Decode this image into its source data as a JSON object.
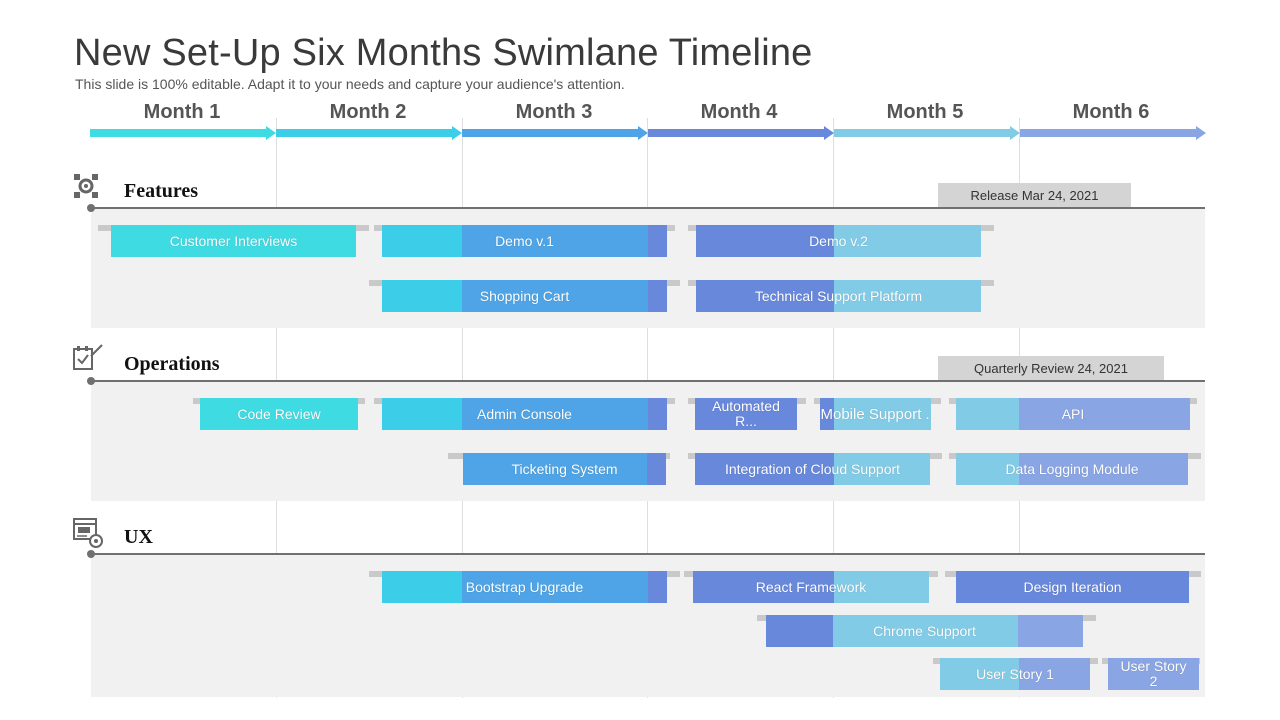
{
  "title": "New Set-Up Six Months Swimlane Timeline",
  "subtitle": "This slide is 100% editable. Adapt it to your needs and capture your audience's attention.",
  "months": [
    "Month 1",
    "Month 2",
    "Month 3",
    "Month 4",
    "Month 5",
    "Month 6"
  ],
  "colors": {
    "month1": "#3fdbe3",
    "month2": "#3ccde9",
    "month3": "#4ea4e6",
    "month4": "#6888dc",
    "month5": "#82cbe6",
    "month6": "#89a5e3",
    "lane_bg": "#f1f1f1",
    "milestone_bg": "#d4d4d4"
  },
  "lanes": [
    {
      "name": "Features",
      "icon": "gear-icon",
      "milestone": "Release Mar 24, 2021",
      "tasks": [
        "Customer Interviews",
        "Demo v.1",
        "Demo v.2",
        "Shopping Cart",
        "Technical Support Platform"
      ]
    },
    {
      "name": "Operations",
      "icon": "checklist-edit-icon",
      "milestone": "Quarterly Review  24, 2021",
      "tasks": [
        "Code Review",
        "Admin Console",
        "Automated R...",
        "Mobile Support ...",
        "API",
        "Ticketing System",
        "Integration of Cloud Support",
        "Data Logging Module"
      ]
    },
    {
      "name": "UX",
      "icon": "ux-window-icon",
      "milestone": "",
      "tasks": [
        "Bootstrap Upgrade",
        "React Framework",
        "Design Iteration",
        "Chrome Support",
        "User Story 1",
        "User Story 2"
      ]
    }
  ]
}
